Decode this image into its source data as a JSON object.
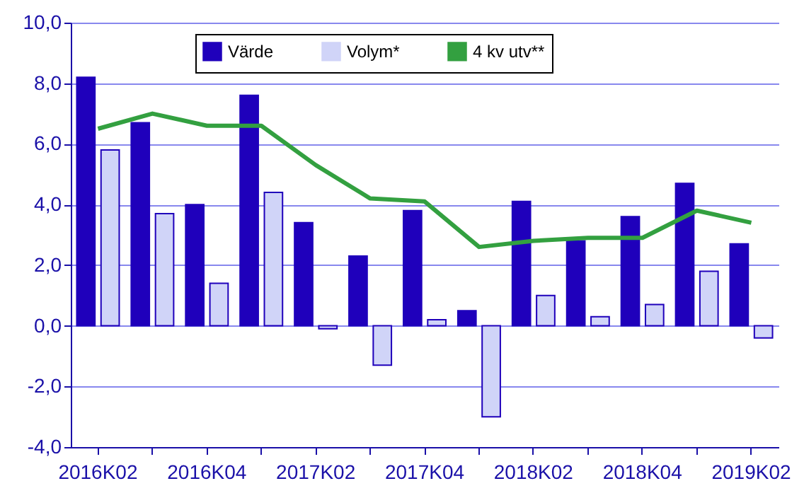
{
  "chart_data": {
    "type": "bar",
    "categories": [
      "2016K02",
      null,
      "2016K04",
      null,
      "2017K02",
      null,
      "2017K04",
      null,
      "2018K02",
      null,
      "2018K04",
      null,
      "2019K02"
    ],
    "series": [
      {
        "name": "Värde",
        "color": "#1f00bb",
        "values": [
          8.2,
          6.7,
          4.0,
          7.6,
          3.4,
          2.3,
          3.8,
          0.5,
          4.1,
          2.8,
          3.6,
          4.7,
          2.7
        ]
      },
      {
        "name": "Volym*",
        "color": "#d0d4f8",
        "values": [
          5.8,
          3.7,
          1.4,
          4.4,
          -0.1,
          -1.3,
          0.2,
          -3.0,
          1.0,
          0.3,
          0.7,
          1.8,
          -0.4
        ]
      },
      {
        "name": "4 kv utv**",
        "type": "line",
        "color": "#33a040",
        "values": [
          6.5,
          7.0,
          6.6,
          6.6,
          5.3,
          4.2,
          4.1,
          2.6,
          2.8,
          2.9,
          2.9,
          3.8,
          3.4
        ]
      }
    ],
    "ylim": [
      -4,
      10
    ],
    "yticks": [
      {
        "value": -4,
        "label": "-4,0"
      },
      {
        "value": -2,
        "label": "-2,0"
      },
      {
        "value": 0,
        "label": "0,0"
      },
      {
        "value": 2,
        "label": "2,0"
      },
      {
        "value": 4,
        "label": "4,0"
      },
      {
        "value": 6,
        "label": "6,0"
      },
      {
        "value": 8,
        "label": "8,0"
      },
      {
        "value": 10,
        "label": "10,0"
      }
    ],
    "grid": "y",
    "legend": "top"
  }
}
